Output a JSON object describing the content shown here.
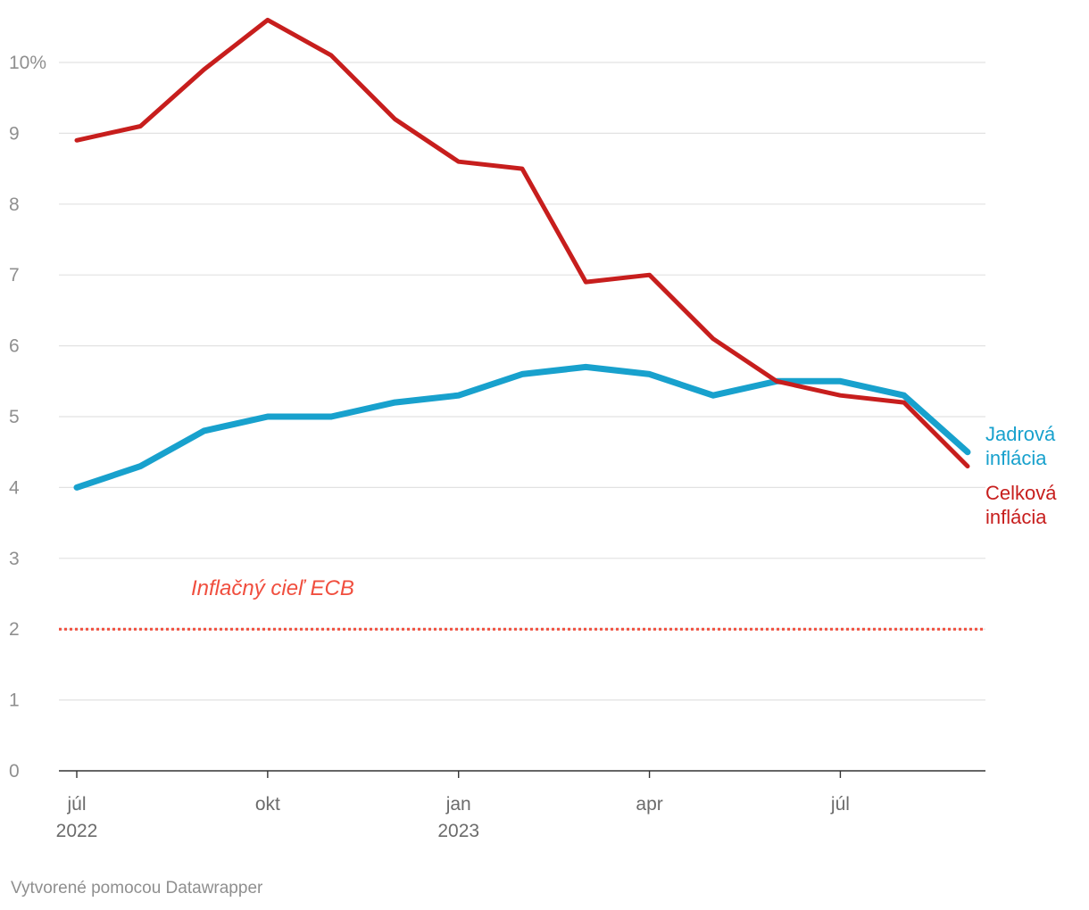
{
  "chart_data": {
    "type": "line",
    "title": "",
    "xlabel": "",
    "ylabel": "",
    "ylim": [
      0,
      10.6
    ],
    "yticks": [
      0,
      1,
      2,
      3,
      4,
      5,
      6,
      7,
      8,
      9,
      10
    ],
    "ytick_labels": [
      "0",
      "1",
      "2",
      "3",
      "4",
      "5",
      "6",
      "7",
      "8",
      "9",
      "10%"
    ],
    "x": [
      "2022-07",
      "2022-08",
      "2022-09",
      "2022-10",
      "2022-11",
      "2022-12",
      "2023-01",
      "2023-02",
      "2023-03",
      "2023-04",
      "2023-05",
      "2023-06",
      "2023-07",
      "2023-08",
      "2023-09"
    ],
    "xticks": [
      {
        "index": 0,
        "line1": "júl",
        "line2": "2022"
      },
      {
        "index": 3,
        "line1": "okt",
        "line2": ""
      },
      {
        "index": 6,
        "line1": "jan",
        "line2": "2023"
      },
      {
        "index": 9,
        "line1": "apr",
        "line2": ""
      },
      {
        "index": 12,
        "line1": "júl",
        "line2": ""
      }
    ],
    "series": [
      {
        "name": "Celková inflácia",
        "label_lines": [
          "Celková",
          "inflácia"
        ],
        "color": "#c71e1d",
        "values": [
          8.9,
          9.1,
          9.9,
          10.6,
          10.1,
          9.2,
          8.6,
          8.5,
          6.9,
          7.0,
          6.1,
          5.5,
          5.3,
          5.2,
          4.3
        ]
      },
      {
        "name": "Jadrová inflácia",
        "label_lines": [
          "Jadrová",
          "inflácia"
        ],
        "color": "#18a1cd",
        "values": [
          4.0,
          4.3,
          4.8,
          5.0,
          5.0,
          5.2,
          5.3,
          5.6,
          5.7,
          5.6,
          5.3,
          5.5,
          5.5,
          5.3,
          4.5
        ]
      }
    ],
    "reference_line": {
      "value": 2,
      "label": "Inflačný cieľ ECB",
      "color": "#f04e3e"
    },
    "grid": true
  },
  "footer": {
    "credit": "Vytvorené pomocou Datawrapper"
  }
}
